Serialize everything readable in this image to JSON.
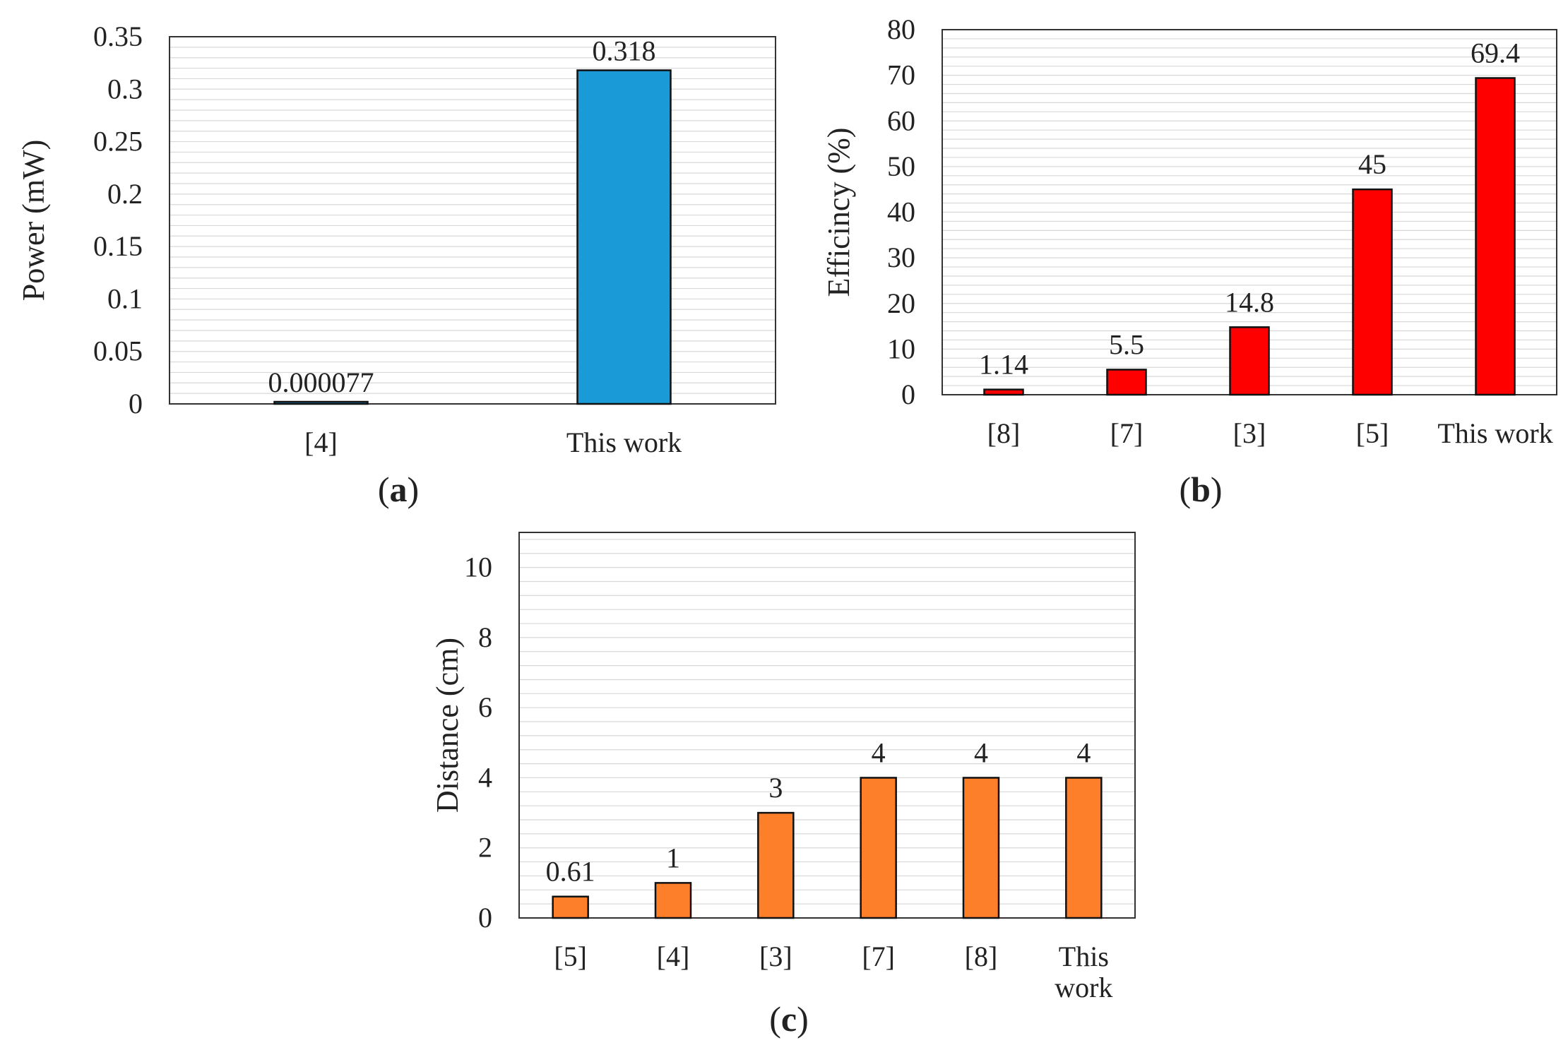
{
  "chart_data": [
    {
      "type": "bar",
      "panel_label": "a",
      "categories": [
        "[4]",
        "This work"
      ],
      "values": [
        7.7e-05,
        0.318
      ],
      "data_labels": [
        "0.000077",
        "0.318"
      ],
      "ylabel": "Power (mW)",
      "ylim": [
        0,
        0.35
      ],
      "yticks": [
        0,
        0.05,
        0.1,
        0.15,
        0.2,
        0.25,
        0.3,
        0.35
      ],
      "ytick_labels": [
        "0",
        "0.05",
        "0.1",
        "0.15",
        "0.2",
        "0.25",
        "0.3",
        "0.35"
      ],
      "grid": true,
      "bar_color": "#1a9ad6"
    },
    {
      "type": "bar",
      "panel_label": "b",
      "categories": [
        "[8]",
        "[7]",
        "[3]",
        "[5]",
        "This work"
      ],
      "values": [
        1.14,
        5.5,
        14.8,
        45,
        69.4
      ],
      "data_labels": [
        "1.14",
        "5.5",
        "14.8",
        "45",
        "69.4"
      ],
      "ylabel": "Efficincy (%)",
      "ylim": [
        0,
        80
      ],
      "yticks": [
        0,
        10,
        20,
        30,
        40,
        50,
        60,
        70,
        80
      ],
      "ytick_labels": [
        "0",
        "10",
        "20",
        "30",
        "40",
        "50",
        "60",
        "70",
        "80"
      ],
      "grid": true,
      "bar_color": "#ff0000"
    },
    {
      "type": "bar",
      "panel_label": "c",
      "categories": [
        "[5]",
        "[4]",
        "[3]",
        "[7]",
        "[8]",
        "This work"
      ],
      "category_lines": [
        [
          "[5]"
        ],
        [
          "[4]"
        ],
        [
          "[3]"
        ],
        [
          "[7]"
        ],
        [
          "[8]"
        ],
        [
          "This",
          "work"
        ]
      ],
      "values": [
        0.61,
        1,
        3,
        4,
        4,
        4
      ],
      "data_labels": [
        "0.61",
        "1",
        "3",
        "4",
        "4",
        "4"
      ],
      "ylabel": "Distance (cm)",
      "ylim": [
        0,
        11
      ],
      "yticks": [
        0,
        2,
        4,
        6,
        8,
        10
      ],
      "ytick_labels": [
        "0",
        "2",
        "4",
        "6",
        "8",
        "10"
      ],
      "grid": true,
      "bar_color": "#fd7f2a"
    }
  ],
  "colors": {
    "grid": "#d8d8d8",
    "frame": "#333333",
    "bar_outline": "#111111"
  }
}
